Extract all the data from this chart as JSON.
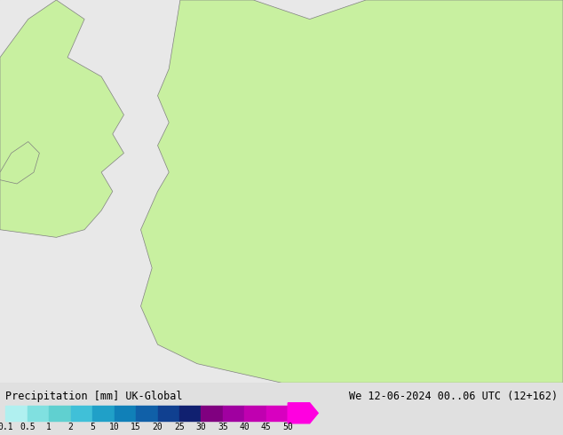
{
  "title_left": "Precipitation [mm] UK-Global",
  "title_right": "We 12-06-2024 00..06 UTC (12+162)",
  "colorbar_values": [
    0.1,
    0.5,
    1,
    2,
    5,
    10,
    15,
    20,
    25,
    30,
    35,
    40,
    45,
    50
  ],
  "colorbar_labels": [
    "0.1",
    "0.5",
    "1",
    "2",
    "5",
    "10",
    "15",
    "20",
    "25",
    "30",
    "35",
    "40",
    "45",
    "50"
  ],
  "colorbar_colors": [
    "#b0f0f0",
    "#80e0e0",
    "#60d0d0",
    "#40c0d8",
    "#20a0c8",
    "#1080b8",
    "#1060a8",
    "#104090",
    "#102070",
    "#800080",
    "#a000a0",
    "#c000b0",
    "#d800c0",
    "#f000d0",
    "#ff00e0"
  ],
  "land_color": "#c8f0a0",
  "sea_color": "#e8e8e8",
  "border_color": "#808080",
  "background_color": "#e0e0e0",
  "fig_width": 6.34,
  "fig_height": 4.9,
  "dpi": 100
}
